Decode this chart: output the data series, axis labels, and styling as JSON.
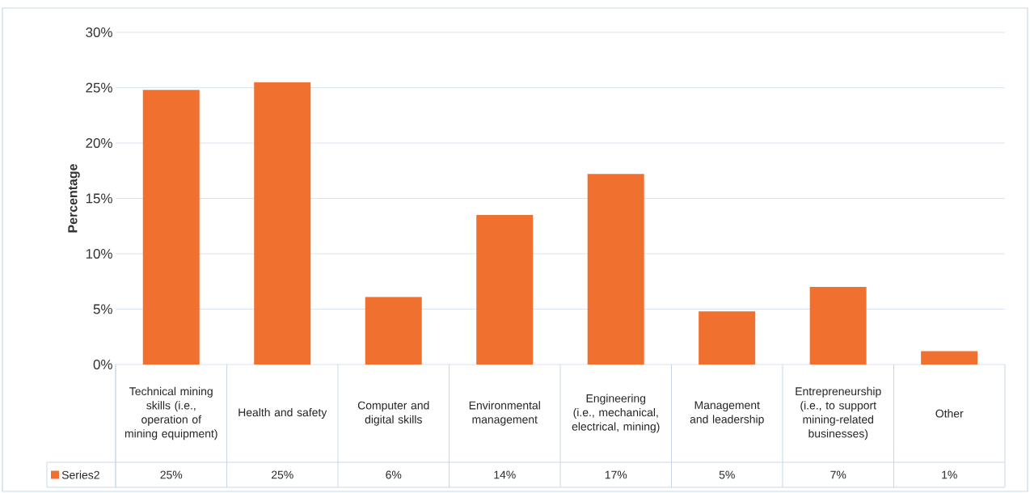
{
  "chart_data": {
    "type": "bar",
    "ylabel": "Percentage",
    "categories": [
      "Technical mining skills (i.e., operation of mining equipment)",
      "Health and safety",
      "Computer and digital skills",
      "Environmental management",
      "Engineering (i.e., mechanical, electrical, mining)",
      "Management and leadership",
      "Entrepreneurship (i.e., to support mining-related businesses)",
      "Other"
    ],
    "series": [
      {
        "name": "Series2",
        "color": "#f07030",
        "values": [
          24.8,
          25.5,
          6.1,
          13.5,
          17.2,
          4.8,
          7.0,
          1.2
        ],
        "value_labels": [
          "25%",
          "25%",
          "6%",
          "14%",
          "17%",
          "5%",
          "7%",
          "1%"
        ]
      }
    ],
    "ylim": [
      0,
      30
    ],
    "yticks": [
      {
        "value": 0,
        "label": "0%"
      },
      {
        "value": 5,
        "label": "5%"
      },
      {
        "value": 10,
        "label": "10%"
      },
      {
        "value": 15,
        "label": "15%"
      },
      {
        "value": 20,
        "label": "20%"
      },
      {
        "value": 25,
        "label": "25%"
      },
      {
        "value": 30,
        "label": "30%"
      }
    ],
    "grid": "y",
    "legend": "bottom"
  }
}
